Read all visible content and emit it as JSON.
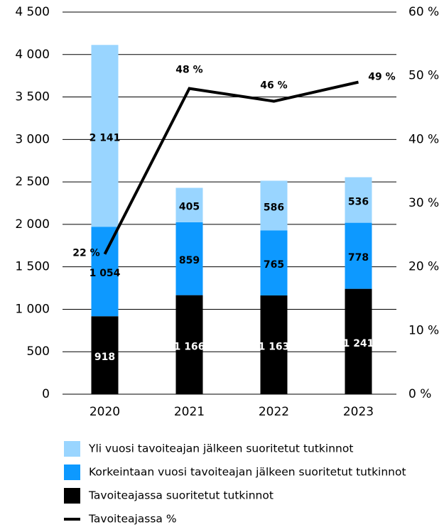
{
  "chart_data": {
    "type": "bar",
    "stacked": true,
    "categories": [
      "2020",
      "2021",
      "2022",
      "2023"
    ],
    "series": [
      {
        "name": "Tavoiteajassa suoritetut tutkinnot",
        "color": "#000000",
        "label_color": "#ffffff",
        "values": [
          918,
          1166,
          1163,
          1241
        ],
        "value_labels": [
          "918",
          "1 166",
          "1 163",
          "1 241"
        ]
      },
      {
        "name": "Korkeintaan vuosi tavoiteajan jälkeen suoritetut tutkinnot",
        "color": "#0d99ff",
        "label_color": "#000000",
        "values": [
          1054,
          859,
          765,
          778
        ],
        "value_labels": [
          "1 054",
          "859",
          "765",
          "778"
        ]
      },
      {
        "name": "Yli vuosi tavoiteajan jälkeen suoritetut tutkinnot",
        "color": "#99d5ff",
        "label_color": "#000000",
        "values": [
          2141,
          405,
          586,
          536
        ],
        "value_labels": [
          "2 141",
          "405",
          "586",
          "536"
        ]
      },
      {
        "name": "Tavoiteajassa %",
        "type": "line",
        "axis": "y2",
        "color": "#000000",
        "values": [
          22,
          48,
          46,
          49
        ],
        "value_labels": [
          "22 %",
          "48 %",
          "46 %",
          "49 %"
        ]
      }
    ],
    "ylim": [
      0,
      4500
    ],
    "yticks": [
      0,
      500,
      {
        "value": 1000,
        "label": "1 000"
      },
      {
        "value": 1500,
        "label": "1 500"
      },
      {
        "value": 2000,
        "label": "2 000"
      },
      {
        "value": 2500,
        "label": "2 500"
      },
      {
        "value": 3000,
        "label": "3 000"
      },
      {
        "value": 3500,
        "label": "3 500"
      },
      {
        "value": 4000,
        "label": "4 000"
      },
      {
        "value": 4500,
        "label": "4 500"
      }
    ],
    "y2lim": [
      0,
      60
    ],
    "y2ticks": [
      {
        "value": 0,
        "label": "0 %"
      },
      {
        "value": 10,
        "label": "10 %"
      },
      {
        "value": 20,
        "label": "20 %"
      },
      {
        "value": 30,
        "label": "30 %"
      },
      {
        "value": 40,
        "label": "40 %"
      },
      {
        "value": 50,
        "label": "50 %"
      },
      {
        "value": 60,
        "label": "60 %"
      }
    ],
    "grid": true
  }
}
